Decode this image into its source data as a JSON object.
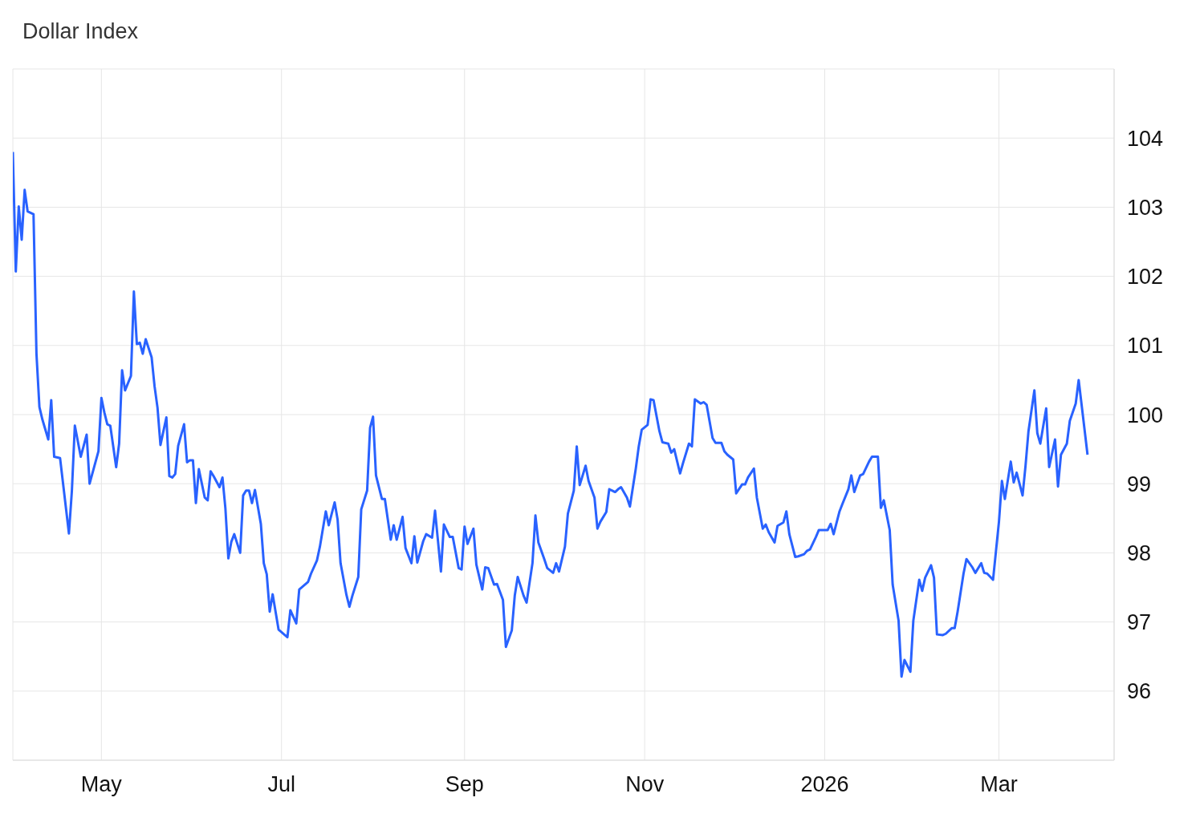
{
  "chart_data": {
    "type": "line",
    "title": "Dollar Index",
    "x": [
      "2025-04-01",
      "2025-04-02",
      "2025-04-03",
      "2025-04-04",
      "2025-04-05",
      "2025-04-06",
      "2025-04-08",
      "2025-04-09",
      "2025-04-10",
      "2025-04-11",
      "2025-04-13",
      "2025-04-14",
      "2025-04-15",
      "2025-04-17",
      "2025-04-20",
      "2025-04-21",
      "2025-04-22",
      "2025-04-24",
      "2025-04-25",
      "2025-04-26",
      "2025-04-27",
      "2025-04-30",
      "2025-05-01",
      "2025-05-02",
      "2025-05-03",
      "2025-05-04",
      "2025-05-06",
      "2025-05-07",
      "2025-05-08",
      "2025-05-09",
      "2025-05-11",
      "2025-05-12",
      "2025-05-13",
      "2025-05-14",
      "2025-05-15",
      "2025-05-16",
      "2025-05-18",
      "2025-05-19",
      "2025-05-20",
      "2025-05-21",
      "2025-05-23",
      "2025-05-24",
      "2025-05-25",
      "2025-05-26",
      "2025-05-27",
      "2025-05-29",
      "2025-05-30",
      "2025-05-31",
      "2025-06-01",
      "2025-06-02",
      "2025-06-03",
      "2025-06-05",
      "2025-06-06",
      "2025-06-07",
      "2025-06-08",
      "2025-06-10",
      "2025-06-11",
      "2025-06-12",
      "2025-06-13",
      "2025-06-14",
      "2025-06-15",
      "2025-06-17",
      "2025-06-18",
      "2025-06-19",
      "2025-06-20",
      "2025-06-21",
      "2025-06-22",
      "2025-06-24",
      "2025-06-25",
      "2025-06-26",
      "2025-06-27",
      "2025-06-28",
      "2025-06-30",
      "2025-07-03",
      "2025-07-04",
      "2025-07-06",
      "2025-07-07",
      "2025-07-10",
      "2025-07-11",
      "2025-07-13",
      "2025-07-14",
      "2025-07-16",
      "2025-07-17",
      "2025-07-19",
      "2025-07-20",
      "2025-07-21",
      "2025-07-23",
      "2025-07-24",
      "2025-07-25",
      "2025-07-27",
      "2025-07-28",
      "2025-07-30",
      "2025-07-31",
      "2025-08-01",
      "2025-08-02",
      "2025-08-04",
      "2025-08-05",
      "2025-08-07",
      "2025-08-08",
      "2025-08-09",
      "2025-08-11",
      "2025-08-12",
      "2025-08-14",
      "2025-08-15",
      "2025-08-16",
      "2025-08-18",
      "2025-08-19",
      "2025-08-21",
      "2025-08-22",
      "2025-08-24",
      "2025-08-25",
      "2025-08-27",
      "2025-08-28",
      "2025-08-30",
      "2025-08-31",
      "2025-09-01",
      "2025-09-02",
      "2025-09-04",
      "2025-09-05",
      "2025-09-07",
      "2025-09-08",
      "2025-09-09",
      "2025-09-11",
      "2025-09-12",
      "2025-09-14",
      "2025-09-15",
      "2025-09-17",
      "2025-09-18",
      "2025-09-19",
      "2025-09-21",
      "2025-09-22",
      "2025-09-24",
      "2025-09-25",
      "2025-09-26",
      "2025-09-28",
      "2025-09-29",
      "2025-10-01",
      "2025-10-02",
      "2025-10-03",
      "2025-10-05",
      "2025-10-06",
      "2025-10-08",
      "2025-10-09",
      "2025-10-10",
      "2025-10-12",
      "2025-10-13",
      "2025-10-15",
      "2025-10-16",
      "2025-10-17",
      "2025-10-19",
      "2025-10-20",
      "2025-10-22",
      "2025-10-23",
      "2025-10-24",
      "2025-10-26",
      "2025-10-27",
      "2025-10-29",
      "2025-10-30",
      "2025-10-31",
      "2025-11-02",
      "2025-11-03",
      "2025-11-04",
      "2025-11-06",
      "2025-11-07",
      "2025-11-09",
      "2025-11-10",
      "2025-11-11",
      "2025-11-13",
      "2025-11-14",
      "2025-11-16",
      "2025-11-17",
      "2025-11-18",
      "2025-11-20",
      "2025-11-21",
      "2025-11-22",
      "2025-11-24",
      "2025-11-25",
      "2025-11-27",
      "2025-11-28",
      "2025-11-29",
      "2025-12-01",
      "2025-12-02",
      "2025-12-04",
      "2025-12-05",
      "2025-12-06",
      "2025-12-08",
      "2025-12-09",
      "2025-12-11",
      "2025-12-12",
      "2025-12-13",
      "2025-12-15",
      "2025-12-16",
      "2025-12-18",
      "2025-12-19",
      "2025-12-20",
      "2025-12-22",
      "2025-12-23",
      "2025-12-25",
      "2025-12-26",
      "2025-12-27",
      "2025-12-29",
      "2025-12-30",
      "2026-01-02",
      "2026-01-03",
      "2026-01-04",
      "2026-01-06",
      "2026-01-07",
      "2026-01-09",
      "2026-01-10",
      "2026-01-11",
      "2026-01-13",
      "2026-01-14",
      "2026-01-16",
      "2026-01-17",
      "2026-01-19",
      "2026-01-20",
      "2026-01-21",
      "2026-01-23",
      "2026-01-24",
      "2026-01-26",
      "2026-01-27",
      "2026-01-28",
      "2026-01-30",
      "2026-01-31",
      "2026-02-02",
      "2026-02-03",
      "2026-02-04",
      "2026-02-06",
      "2026-02-07",
      "2026-02-08",
      "2026-02-10",
      "2026-02-11",
      "2026-02-13",
      "2026-02-14",
      "2026-02-15",
      "2026-02-17",
      "2026-02-18",
      "2026-02-20",
      "2026-02-21",
      "2026-02-23",
      "2026-02-24",
      "2026-02-25",
      "2026-02-27",
      "2026-03-01",
      "2026-03-02",
      "2026-03-03",
      "2026-03-05",
      "2026-03-06",
      "2026-03-07",
      "2026-03-09",
      "2026-03-10",
      "2026-03-11",
      "2026-03-13",
      "2026-03-14",
      "2026-03-15",
      "2026-03-17",
      "2026-03-18",
      "2026-03-20",
      "2026-03-21",
      "2026-03-22",
      "2026-03-24",
      "2026-03-25",
      "2026-03-27",
      "2026-03-28",
      "2026-03-31"
    ],
    "series": [
      {
        "color": "#2962ff",
        "values": [
          103.8,
          102.07,
          103.01,
          102.53,
          103.25,
          102.94,
          102.9,
          100.88,
          100.11,
          99.93,
          99.64,
          100.21,
          99.39,
          99.37,
          98.28,
          98.9,
          99.84,
          99.39,
          99.55,
          99.71,
          99.0,
          99.47,
          100.24,
          100.03,
          99.86,
          99.84,
          99.24,
          99.58,
          100.64,
          100.35,
          100.56,
          101.78,
          101.02,
          101.04,
          100.88,
          101.09,
          100.83,
          100.41,
          100.1,
          99.56,
          99.96,
          99.11,
          99.09,
          99.14,
          99.55,
          99.86,
          99.31,
          99.34,
          99.34,
          98.72,
          99.21,
          98.8,
          98.76,
          99.18,
          99.11,
          98.95,
          99.09,
          98.64,
          97.92,
          98.16,
          98.27,
          98.0,
          98.83,
          98.9,
          98.9,
          98.72,
          98.91,
          98.42,
          97.85,
          97.69,
          97.15,
          97.4,
          96.89,
          96.78,
          97.17,
          96.98,
          97.47,
          97.58,
          97.7,
          97.89,
          98.09,
          98.6,
          98.4,
          98.73,
          98.48,
          97.85,
          97.39,
          97.22,
          97.38,
          97.65,
          98.63,
          98.9,
          99.81,
          99.97,
          99.12,
          98.78,
          98.78,
          98.19,
          98.4,
          98.19,
          98.52,
          98.07,
          97.85,
          98.24,
          97.86,
          98.17,
          98.27,
          98.22,
          98.61,
          97.73,
          98.41,
          98.23,
          98.23,
          97.78,
          97.76,
          98.38,
          98.13,
          98.35,
          97.83,
          97.47,
          97.79,
          97.78,
          97.54,
          97.55,
          97.32,
          96.64,
          96.88,
          97.38,
          97.65,
          97.38,
          97.28,
          97.85,
          98.54,
          98.15,
          97.91,
          97.78,
          97.71,
          97.85,
          97.73,
          98.09,
          98.57,
          98.9,
          99.54,
          98.98,
          99.26,
          99.04,
          98.8,
          98.35,
          98.45,
          98.59,
          98.92,
          98.88,
          98.92,
          98.95,
          98.8,
          98.67,
          99.22,
          99.54,
          99.78,
          99.85,
          100.22,
          100.21,
          99.76,
          99.6,
          99.58,
          99.45,
          99.5,
          99.15,
          99.3,
          99.58,
          99.54,
          100.22,
          100.16,
          100.18,
          100.14,
          99.66,
          99.59,
          99.59,
          99.47,
          99.42,
          99.35,
          98.86,
          98.99,
          98.99,
          99.09,
          99.22,
          98.8,
          98.35,
          98.41,
          98.3,
          98.15,
          98.39,
          98.44,
          98.6,
          98.27,
          97.94,
          97.95,
          97.98,
          98.03,
          98.05,
          98.23,
          98.33,
          98.33,
          98.42,
          98.27,
          98.6,
          98.71,
          98.92,
          99.12,
          98.88,
          99.12,
          99.14,
          99.32,
          99.39,
          99.39,
          98.65,
          98.76,
          98.33,
          97.54,
          97.02,
          96.21,
          96.45,
          96.28,
          97.02,
          97.61,
          97.45,
          97.64,
          97.82,
          97.64,
          96.82,
          96.81,
          96.83,
          96.91,
          96.91,
          97.15,
          97.7,
          97.91,
          97.79,
          97.71,
          97.85,
          97.71,
          97.7,
          97.61,
          98.45,
          99.04,
          98.78,
          99.32,
          99.02,
          99.16,
          98.83,
          99.26,
          99.76,
          100.35,
          99.73,
          99.58,
          100.09,
          99.24,
          99.64,
          98.96,
          99.42,
          99.58,
          99.91,
          100.16,
          100.5,
          99.42
        ]
      }
    ],
    "xlim": [
      "2025-04-01",
      "2026-04-09"
    ],
    "xticks": [
      {
        "value": "2025-05-01",
        "label": "May"
      },
      {
        "value": "2025-07-01",
        "label": "Jul"
      },
      {
        "value": "2025-09-01",
        "label": "Sep"
      },
      {
        "value": "2025-11-01",
        "label": "Nov"
      },
      {
        "value": "2026-01-01",
        "label": "2026"
      },
      {
        "value": "2026-03-01",
        "label": "Mar"
      }
    ],
    "ylim": [
      95,
      105
    ],
    "yticks": [
      96,
      97,
      98,
      99,
      100,
      101,
      102,
      103,
      104
    ],
    "grid": true,
    "legend": false,
    "marker": "none",
    "line_style": "solid"
  }
}
